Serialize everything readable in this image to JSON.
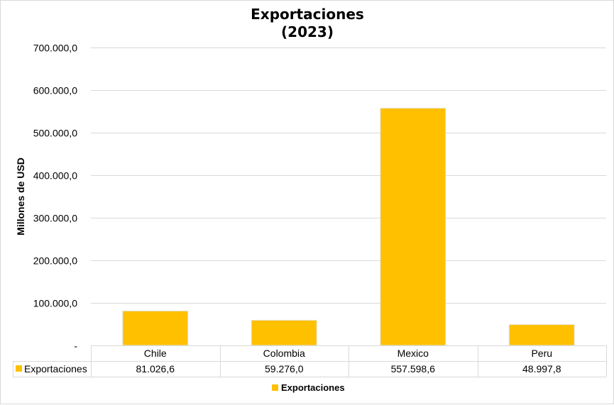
{
  "chart_data": {
    "type": "bar",
    "title_lines": [
      "Exportaciones",
      "(2023)"
    ],
    "ylabel": "Millones de USD",
    "xlabel": "",
    "categories": [
      "Chile",
      "Colombia",
      "Mexico",
      "Peru"
    ],
    "series": [
      {
        "name": "Exportaciones",
        "values": [
          81026.6,
          59276.0,
          557598.6,
          48997.8
        ],
        "display_values": [
          "81.026,6",
          "59.276,0",
          "557.598,6",
          "48.997,8"
        ],
        "color": "#FFC000"
      }
    ],
    "ylim": [
      0,
      700000
    ],
    "yticks": [
      0,
      100000,
      200000,
      300000,
      400000,
      500000,
      600000,
      700000
    ],
    "ytick_labels": [
      "-",
      "100.000,0",
      "200.000,0",
      "300.000,0",
      "400.000,0",
      "500.000,0",
      "600.000,0",
      "700.000,0"
    ],
    "grid": true,
    "data_table": true,
    "legend": {
      "position": "bottom",
      "label": "Exportaciones"
    }
  }
}
